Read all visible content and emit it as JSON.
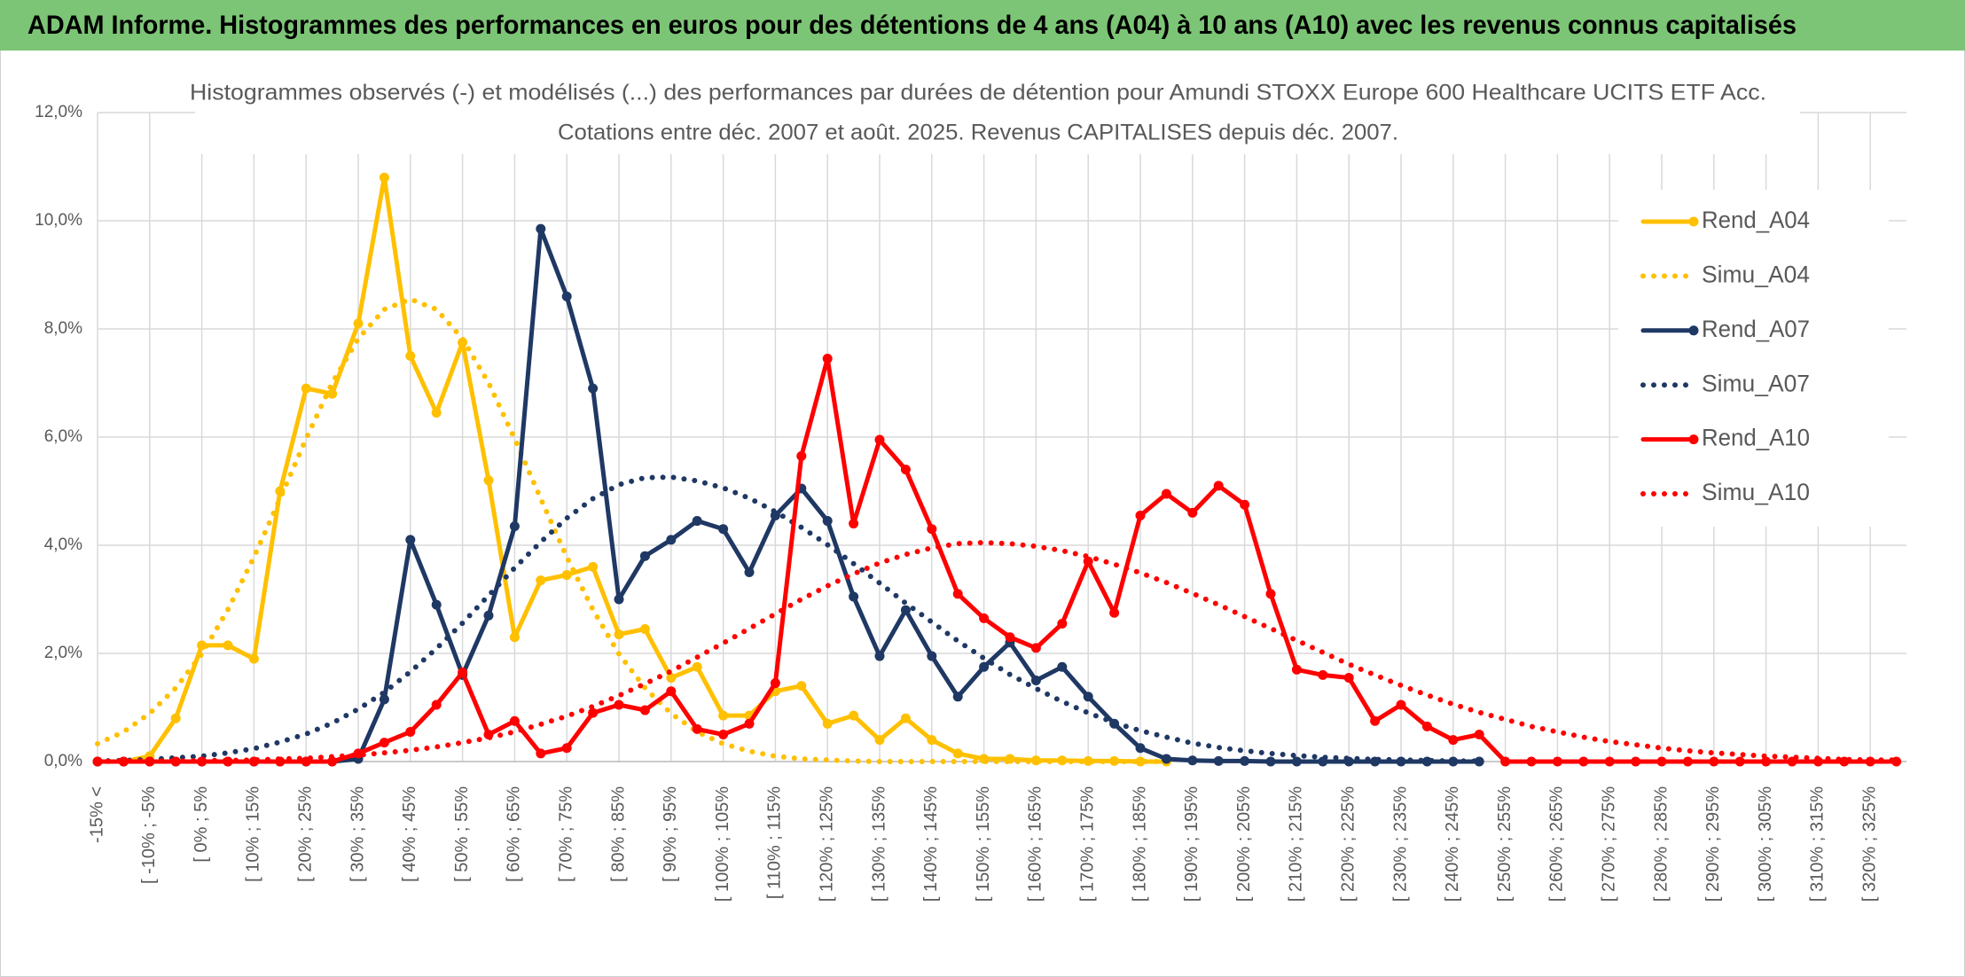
{
  "header": {
    "title": "ADAM Informe. Histogrammes des performances en euros pour des détentions de 4 ans (A04) à 10 ans (A10) avec les revenus connus capitalisés"
  },
  "chart_data": {
    "type": "line",
    "title": "Histogrammes observés (-) et modélisés (...) des performances par durées de détention pour Amundi STOXX Europe 600 Healthcare UCITS ETF Acc.",
    "subtitle": "Cotations entre déc. 2007 et août. 2025. Revenus CAPITALISES depuis déc. 2007.",
    "categories": [
      "-15% <",
      null,
      "[ -10% ; -5%",
      null,
      "[ 0% ; 5%",
      null,
      "[ 10% ; 15%",
      null,
      "[ 20% ; 25%",
      null,
      "[ 30% ; 35%",
      null,
      "[ 40% ; 45%",
      null,
      "[ 50% ; 55%",
      null,
      "[ 60% ; 65%",
      null,
      "[ 70% ; 75%",
      null,
      "[ 80% ; 85%",
      null,
      "[ 90% ; 95%",
      null,
      "[ 100% ; 105%",
      null,
      "[ 110% ; 115%",
      null,
      "[ 120% ; 125%",
      null,
      "[ 130% ; 135%",
      null,
      "[ 140% ; 145%",
      null,
      "[ 150% ; 155%",
      null,
      "[ 160% ; 165%",
      null,
      "[ 170% ; 175%",
      null,
      "[ 180% ; 185%",
      null,
      "[ 190% ; 195%",
      null,
      "[ 200% ; 205%",
      null,
      "[ 210% ; 215%",
      null,
      "[ 220% ; 225%",
      null,
      "[ 230% ; 235%",
      null,
      "[ 240% ; 245%",
      null,
      "[ 250% ; 255%",
      null,
      "[ 260% ; 265%",
      null,
      "[ 270% ; 275%",
      null,
      "[ 280% ; 285%",
      null,
      "[ 290% ; 295%",
      null,
      "[ 300% ; 305%",
      null,
      "[ 310% ; 315%",
      null,
      "[ 320% ; 325%",
      null
    ],
    "series": [
      {
        "name": "Rend_A04",
        "color": "#FFC000",
        "line_style": "solid",
        "markers": true,
        "values": [
          0,
          0,
          0.1,
          0.8,
          2.15,
          2.15,
          1.9,
          5.0,
          6.9,
          6.8,
          8.1,
          10.8,
          7.5,
          6.45,
          7.75,
          5.2,
          2.3,
          3.35,
          3.45,
          3.6,
          2.35,
          2.45,
          1.55,
          1.75,
          0.85,
          0.85,
          1.3,
          1.4,
          0.7,
          0.85,
          0.4,
          0.8,
          0.4,
          0.15,
          0.05,
          0.05,
          0.02,
          0.02,
          0.01,
          0.01,
          0,
          0,
          null,
          null,
          null,
          null,
          null,
          null,
          null,
          null,
          null,
          null,
          null,
          null,
          null,
          null,
          null,
          null,
          null,
          null,
          null,
          null,
          null,
          null,
          null,
          null,
          null,
          null,
          null,
          null
        ]
      },
      {
        "name": "Simu_A04",
        "color": "#FFC000",
        "line_style": "dotted",
        "markers": false,
        "values": [
          0.33,
          0.55,
          0.89,
          1.36,
          1.99,
          2.81,
          3.78,
          4.86,
          5.97,
          7.0,
          7.82,
          8.36,
          8.55,
          8.36,
          7.82,
          7.0,
          5.97,
          4.86,
          3.78,
          2.81,
          1.99,
          1.36,
          0.89,
          0.55,
          0.33,
          0.19,
          0.1,
          0.05,
          0.03,
          0.01,
          0,
          0,
          0,
          0,
          0,
          0,
          0,
          0,
          0,
          0,
          0,
          0,
          null,
          null,
          null,
          null,
          null,
          null,
          null,
          null,
          null,
          null,
          null,
          null,
          null,
          null,
          null,
          null,
          null,
          null,
          null,
          null,
          null,
          null,
          null,
          null,
          null,
          null,
          null,
          null
        ]
      },
      {
        "name": "Rend_A07",
        "color": "#1F3864",
        "line_style": "solid",
        "markers": true,
        "values": [
          0,
          0,
          0,
          0,
          0,
          0,
          0,
          0,
          0,
          0,
          0.05,
          1.15,
          4.1,
          2.9,
          1.6,
          2.7,
          4.35,
          9.85,
          8.6,
          6.9,
          3.0,
          3.8,
          4.1,
          4.45,
          4.3,
          3.5,
          4.55,
          5.05,
          4.45,
          3.05,
          1.95,
          2.8,
          1.95,
          1.2,
          1.75,
          2.2,
          1.5,
          1.75,
          1.2,
          0.7,
          0.25,
          0.05,
          0.02,
          0.01,
          0.01,
          0,
          0,
          0,
          0,
          0,
          0,
          0,
          0,
          0,
          null,
          null,
          null,
          null,
          null,
          null,
          null,
          null,
          null,
          null,
          null,
          null,
          null,
          null,
          null,
          null
        ]
      },
      {
        "name": "Simu_A07",
        "color": "#1F3864",
        "line_style": "dotted",
        "markers": false,
        "values": [
          0.01,
          0.02,
          0.04,
          0.07,
          0.1,
          0.16,
          0.24,
          0.36,
          0.51,
          0.71,
          0.97,
          1.28,
          1.66,
          2.09,
          2.56,
          3.07,
          3.58,
          4.06,
          4.5,
          4.86,
          5.12,
          5.25,
          5.26,
          5.19,
          5.06,
          4.87,
          4.62,
          4.33,
          4.01,
          3.66,
          3.3,
          2.93,
          2.58,
          2.23,
          1.91,
          1.61,
          1.35,
          1.11,
          0.9,
          0.72,
          0.57,
          0.45,
          0.34,
          0.26,
          0.2,
          0.15,
          0.11,
          0.08,
          0.06,
          0.04,
          0.03,
          0.02,
          0.01,
          0.01,
          null,
          null,
          null,
          null,
          null,
          null,
          null,
          null,
          null,
          null,
          null,
          null,
          null,
          null,
          null,
          null
        ]
      },
      {
        "name": "Rend_A10",
        "color": "#FF0000",
        "line_style": "solid",
        "markers": true,
        "values": [
          0,
          0,
          0,
          0,
          0,
          0,
          0,
          0,
          0,
          0,
          0.15,
          0.35,
          0.55,
          1.05,
          1.65,
          0.5,
          0.75,
          0.15,
          0.25,
          0.9,
          1.05,
          0.95,
          1.3,
          0.6,
          0.5,
          0.7,
          1.45,
          5.65,
          7.45,
          4.4,
          5.95,
          5.4,
          4.3,
          3.1,
          2.65,
          2.3,
          2.1,
          2.55,
          3.7,
          2.75,
          4.55,
          4.95,
          4.6,
          5.1,
          4.75,
          3.1,
          1.7,
          1.6,
          1.55,
          0.75,
          1.05,
          0.65,
          0.4,
          0.5,
          0,
          0,
          0,
          0,
          0,
          0,
          0,
          0,
          0,
          0,
          0,
          0,
          0,
          0,
          0,
          0
        ]
      },
      {
        "name": "Simu_A10",
        "color": "#FF0000",
        "line_style": "dotted",
        "markers": false,
        "values": [
          0,
          0.01,
          0.01,
          0.01,
          0.02,
          0.02,
          0.03,
          0.05,
          0.06,
          0.09,
          0.12,
          0.16,
          0.21,
          0.27,
          0.35,
          0.44,
          0.55,
          0.69,
          0.84,
          1.02,
          1.22,
          1.44,
          1.67,
          1.93,
          2.19,
          2.46,
          2.73,
          3.0,
          3.25,
          3.47,
          3.67,
          3.83,
          3.95,
          4.03,
          4.05,
          4.03,
          3.98,
          3.9,
          3.79,
          3.65,
          3.49,
          3.31,
          3.11,
          2.9,
          2.68,
          2.46,
          2.24,
          2.02,
          1.8,
          1.6,
          1.41,
          1.23,
          1.06,
          0.91,
          0.78,
          0.65,
          0.55,
          0.45,
          0.37,
          0.31,
          0.25,
          0.2,
          0.16,
          0.13,
          0.1,
          0.08,
          0.06,
          0.04,
          0.03,
          0.03
        ]
      }
    ],
    "ylim": [
      0,
      12
    ],
    "yticks": [
      {
        "value": 0,
        "label": "0,0%"
      },
      {
        "value": 2,
        "label": "2,0%"
      },
      {
        "value": 4,
        "label": "4,0%"
      },
      {
        "value": 6,
        "label": "6,0%"
      },
      {
        "value": 8,
        "label": "8,0%"
      },
      {
        "value": 10,
        "label": "10,0%"
      },
      {
        "value": 12,
        "label": "12,0%"
      }
    ],
    "grid": true,
    "legend": "right"
  }
}
